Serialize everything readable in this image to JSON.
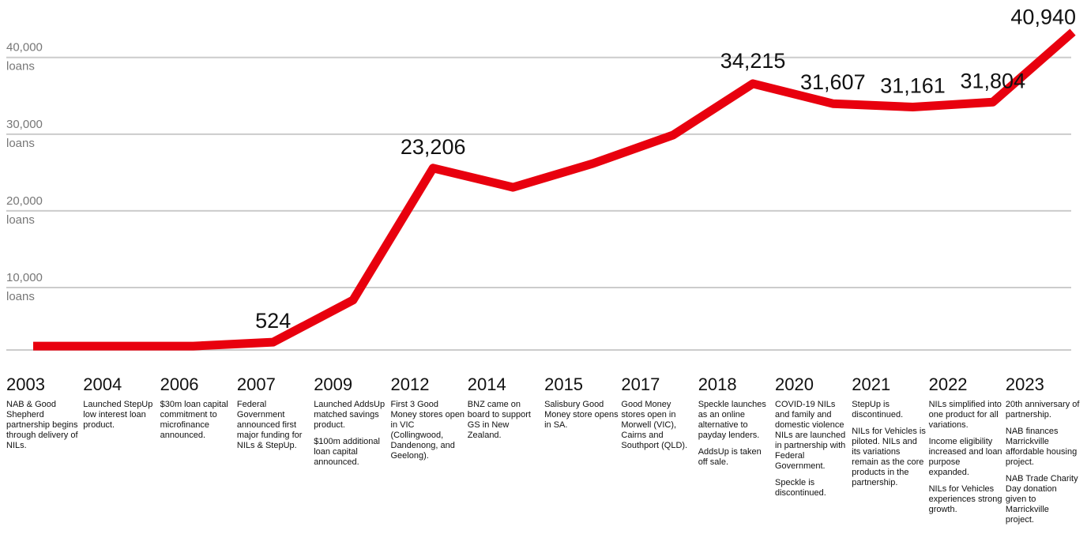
{
  "chart_data": {
    "type": "line",
    "x": [
      "2003",
      "2004",
      "2006",
      "2007",
      "2009",
      "2012",
      "2014",
      "2015",
      "2017",
      "2018",
      "2020",
      "2021",
      "2022",
      "2023"
    ],
    "values": [
      0,
      0,
      0,
      524,
      6000,
      23206,
      20700,
      23800,
      27500,
      34215,
      31607,
      31161,
      31804,
      40940
    ],
    "point_labels": [
      "",
      "",
      "",
      "524",
      "",
      "23,206",
      "",
      "",
      "",
      "34,215",
      "31,607",
      "31,161",
      "31,804",
      "40,940"
    ],
    "ylim": [
      -500,
      41000
    ],
    "yticks": [
      {
        "value": 40000,
        "line1": "40,000",
        "line2": "loans"
      },
      {
        "value": 30000,
        "line1": "30,000",
        "line2": "loans"
      },
      {
        "value": 20000,
        "line1": "20,000",
        "line2": "loans"
      },
      {
        "value": 10000,
        "line1": "10,000",
        "line2": "loans"
      }
    ],
    "grid": true,
    "line_color": "#e8000e",
    "grid_color": "#cccccc"
  },
  "timeline": [
    {
      "year": "2003",
      "notes": [
        "NAB & Good Shepherd partnership begins through delivery of NILs."
      ]
    },
    {
      "year": "2004",
      "notes": [
        "Launched StepUp low interest loan product."
      ]
    },
    {
      "year": "2006",
      "notes": [
        "$30m loan capital commitment to microfinance announced."
      ]
    },
    {
      "year": "2007",
      "notes": [
        "Federal Government announced first major funding for NILs & StepUp."
      ]
    },
    {
      "year": "2009",
      "notes": [
        "Launched AddsUp matched savings product.",
        "$100m additional loan capital announced."
      ]
    },
    {
      "year": "2012",
      "notes": [
        "First 3 Good Money stores open in VIC (Collingwood, Dandenong, and Geelong)."
      ]
    },
    {
      "year": "2014",
      "notes": [
        "BNZ came on board to support GS in New Zealand."
      ]
    },
    {
      "year": "2015",
      "notes": [
        "Salisbury Good Money store opens in SA."
      ]
    },
    {
      "year": "2017",
      "notes": [
        "Good Money stores open in Morwell (VIC), Cairns and Southport (QLD)."
      ]
    },
    {
      "year": "2018",
      "notes": [
        "Speckle launches as an online alternative to payday lenders.",
        "AddsUp is taken off sale."
      ]
    },
    {
      "year": "2020",
      "notes": [
        "COVID-19 NILs and family and domestic violence NILs are launched in partnership with Federal Government.",
        "Speckle is discontinued."
      ]
    },
    {
      "year": "2021",
      "notes": [
        "StepUp is discontinued.",
        "NILs for Vehicles is piloted. NILs and its variations remain as the core products in the partnership."
      ]
    },
    {
      "year": "2022",
      "notes": [
        "NILs simplified into one product for all variations.",
        "Income eligibility increased and loan purpose expanded.",
        "NILs for Vehicles experiences strong growth."
      ]
    },
    {
      "year": "2023",
      "notes": [
        "20th anniversary of partnership.",
        "NAB finances Marrickville affordable housing project.",
        "NAB Trade Charity Day donation given to Marrickville project."
      ]
    }
  ]
}
